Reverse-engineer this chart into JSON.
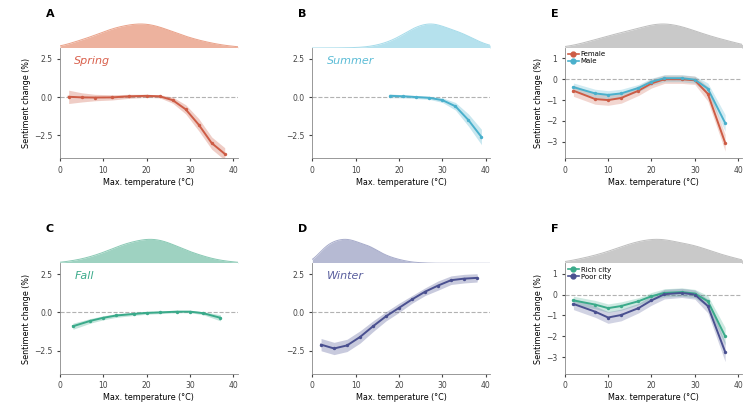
{
  "spring": {
    "x": [
      2,
      5,
      8,
      12,
      16,
      20,
      23,
      26,
      29,
      32,
      35,
      38
    ],
    "y": [
      0.02,
      -0.02,
      -0.03,
      -0.02,
      0.05,
      0.08,
      0.05,
      -0.2,
      -0.8,
      -1.8,
      -3.0,
      -3.7
    ],
    "ci_upper": [
      0.45,
      0.28,
      0.18,
      0.15,
      0.18,
      0.18,
      0.15,
      0.0,
      -0.5,
      -1.4,
      -2.6,
      -3.3
    ],
    "ci_lower": [
      -0.42,
      -0.32,
      -0.24,
      -0.19,
      -0.08,
      -0.02,
      -0.05,
      -0.4,
      -1.1,
      -2.2,
      -3.4,
      -4.1
    ],
    "color": "#cd5c45",
    "label": "Spring",
    "label_color": "#d9604c"
  },
  "summer": {
    "x": [
      18,
      21,
      24,
      27,
      30,
      33,
      36,
      39
    ],
    "y": [
      0.08,
      0.05,
      0.0,
      -0.05,
      -0.2,
      -0.6,
      -1.5,
      -2.6
    ],
    "ci_upper": [
      0.2,
      0.15,
      0.1,
      0.05,
      -0.05,
      -0.35,
      -1.1,
      -2.1
    ],
    "ci_lower": [
      -0.04,
      -0.05,
      -0.1,
      -0.15,
      -0.35,
      -0.85,
      -1.9,
      -3.1
    ],
    "color": "#4ab0cc",
    "label": "Summer",
    "label_color": "#5bbcd6"
  },
  "fall": {
    "x": [
      3,
      7,
      10,
      13,
      17,
      20,
      23,
      27,
      30,
      33,
      37
    ],
    "y": [
      -0.9,
      -0.55,
      -0.35,
      -0.2,
      -0.1,
      -0.03,
      0.0,
      0.05,
      0.05,
      -0.05,
      -0.35
    ],
    "ci_upper": [
      -0.7,
      -0.4,
      -0.22,
      -0.08,
      0.0,
      0.06,
      0.08,
      0.12,
      0.12,
      0.05,
      -0.15
    ],
    "ci_lower": [
      -1.1,
      -0.7,
      -0.48,
      -0.32,
      -0.2,
      -0.12,
      -0.08,
      -0.02,
      -0.02,
      -0.15,
      -0.55
    ],
    "color": "#3aaa8a",
    "label": "Fall",
    "label_color": "#3aaa8a"
  },
  "winter": {
    "x": [
      2,
      5,
      8,
      11,
      14,
      17,
      20,
      23,
      26,
      29,
      32,
      35,
      38
    ],
    "y": [
      -2.1,
      -2.35,
      -2.15,
      -1.6,
      -0.9,
      -0.25,
      0.3,
      0.85,
      1.35,
      1.75,
      2.1,
      2.2,
      2.25
    ],
    "ci_upper": [
      -1.7,
      -1.95,
      -1.75,
      -1.2,
      -0.55,
      0.05,
      0.6,
      1.1,
      1.6,
      2.05,
      2.38,
      2.48,
      2.52
    ],
    "ci_lower": [
      -2.5,
      -2.75,
      -2.55,
      -2.0,
      -1.25,
      -0.55,
      0.0,
      0.6,
      1.1,
      1.45,
      1.82,
      1.92,
      1.98
    ],
    "color": "#4a5090",
    "label": "Winter",
    "label_color": "#5a5f9e"
  },
  "female": {
    "x": [
      2,
      7,
      10,
      13,
      17,
      20,
      23,
      27,
      30,
      33,
      37
    ],
    "y": [
      -0.55,
      -0.95,
      -1.0,
      -0.9,
      -0.55,
      -0.2,
      0.0,
      0.0,
      -0.05,
      -0.7,
      -3.05
    ],
    "ci_upper": [
      -0.28,
      -0.7,
      -0.75,
      -0.65,
      -0.32,
      0.02,
      0.2,
      0.2,
      0.15,
      -0.35,
      -2.65
    ],
    "ci_lower": [
      -0.82,
      -1.2,
      -1.25,
      -1.15,
      -0.78,
      -0.42,
      -0.2,
      -0.2,
      -0.25,
      -1.05,
      -3.45
    ],
    "color": "#cd5c45"
  },
  "male": {
    "x": [
      2,
      7,
      10,
      13,
      17,
      20,
      23,
      27,
      30,
      33,
      37
    ],
    "y": [
      -0.38,
      -0.68,
      -0.75,
      -0.68,
      -0.42,
      -0.12,
      0.05,
      0.05,
      -0.02,
      -0.45,
      -2.1
    ],
    "ci_upper": [
      -0.18,
      -0.48,
      -0.55,
      -0.48,
      -0.25,
      0.05,
      0.22,
      0.22,
      0.15,
      -0.18,
      -1.7
    ],
    "ci_lower": [
      -0.58,
      -0.88,
      -0.95,
      -0.88,
      -0.59,
      -0.29,
      -0.12,
      -0.12,
      -0.19,
      -0.72,
      -2.5
    ],
    "color": "#4ab0cc"
  },
  "rich": {
    "x": [
      2,
      7,
      10,
      13,
      17,
      20,
      23,
      27,
      30,
      33,
      37
    ],
    "y": [
      -0.28,
      -0.48,
      -0.65,
      -0.55,
      -0.32,
      -0.08,
      0.08,
      0.12,
      0.05,
      -0.32,
      -2.0
    ],
    "ci_upper": [
      -0.08,
      -0.28,
      -0.45,
      -0.35,
      -0.15,
      0.1,
      0.28,
      0.32,
      0.25,
      -0.05,
      -1.58
    ],
    "ci_lower": [
      -0.48,
      -0.68,
      -0.85,
      -0.75,
      -0.49,
      -0.26,
      -0.12,
      -0.08,
      -0.15,
      -0.59,
      -2.42
    ],
    "color": "#3aaa8a"
  },
  "poor": {
    "x": [
      2,
      7,
      10,
      13,
      17,
      20,
      23,
      27,
      30,
      33,
      37
    ],
    "y": [
      -0.45,
      -0.82,
      -1.1,
      -0.98,
      -0.65,
      -0.28,
      0.02,
      0.08,
      0.0,
      -0.55,
      -2.75
    ],
    "ci_upper": [
      -0.18,
      -0.55,
      -0.82,
      -0.7,
      -0.42,
      -0.05,
      0.25,
      0.3,
      0.22,
      -0.22,
      -2.28
    ],
    "ci_lower": [
      -0.72,
      -1.09,
      -1.38,
      -1.26,
      -0.88,
      -0.51,
      -0.21,
      -0.14,
      -0.22,
      -0.88,
      -3.22
    ],
    "color": "#4a5090"
  },
  "xlabel": "Max. temperature (°C)",
  "ylabel": "Sentiment change (%)",
  "xlim": [
    0,
    41
  ],
  "xticks": [
    0,
    10,
    20,
    30,
    40
  ],
  "season_ylim": [
    -4.0,
    3.2
  ],
  "season_yticks": [
    -2.5,
    0.0,
    2.5
  ],
  "gender_ylim": [
    -3.8,
    1.5
  ],
  "gender_yticks": [
    -3.0,
    -2.0,
    -1.0,
    0.0,
    1.0
  ],
  "spring_dist": {
    "mean": 18,
    "std": 9
  },
  "summer_dist": {
    "mean": 28,
    "std": 6
  },
  "fall_dist": {
    "mean": 20,
    "std": 8
  },
  "winter_dist": {
    "mean": 8,
    "std": 6
  },
  "gender_dist": {
    "mean": 22,
    "std": 10
  },
  "ses_dist": {
    "mean": 22,
    "std": 10
  },
  "spring_dist_color": "#e8997e",
  "summer_dist_color": "#9dd8e8",
  "fall_dist_color": "#7ec4ad",
  "winter_dist_color": "#9ea3c5",
  "gender_dist_color": "#b8b8b8",
  "ses_dist_color": "#b8b8b8"
}
